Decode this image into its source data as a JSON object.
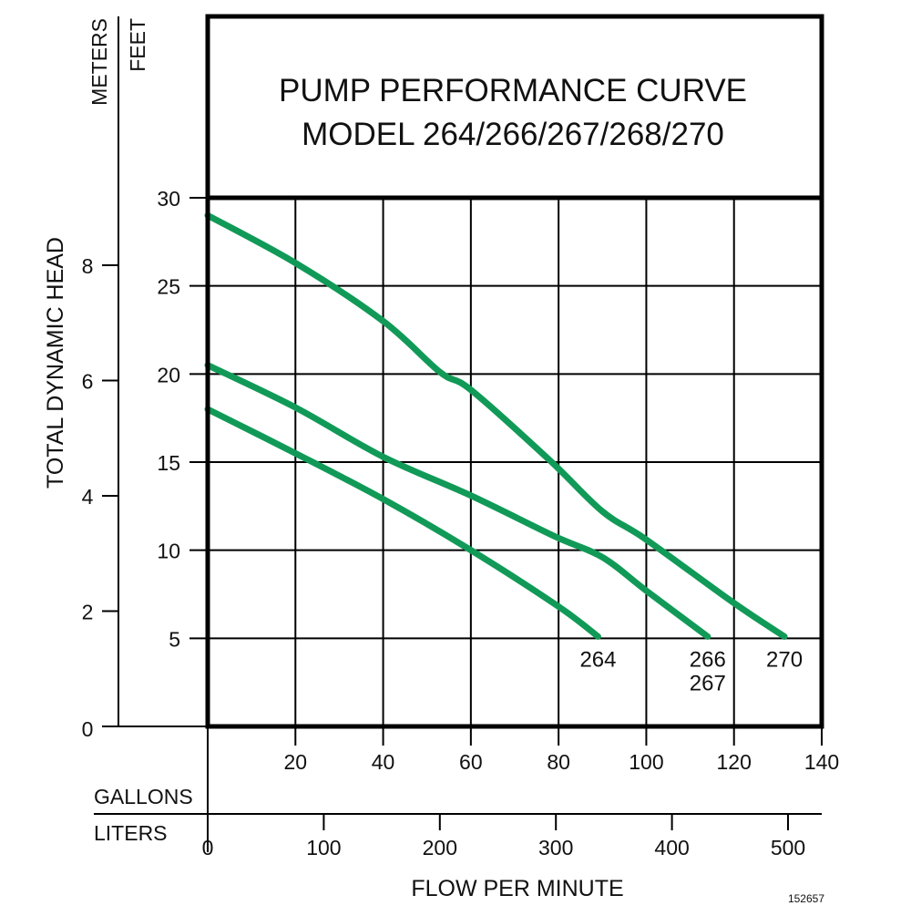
{
  "chart_data": {
    "type": "line",
    "title": "PUMP PERFORMANCE CURVE",
    "subtitle": "MODEL 264/266/267/268/270",
    "ylabel": "TOTAL DYNAMIC HEAD",
    "xlabel": "FLOW PER MINUTE",
    "y_axes": {
      "feet": {
        "label": "FEET",
        "range": [
          0,
          30
        ],
        "ticks": [
          5,
          10,
          15,
          20,
          25,
          30
        ],
        "zero_label": "0"
      },
      "meters": {
        "label": "METERS",
        "range": [
          0,
          9.144
        ],
        "ticks": [
          0,
          2,
          4,
          6,
          8
        ]
      }
    },
    "x_axes": {
      "gallons": {
        "label": "GALLONS",
        "range": [
          0,
          140
        ],
        "ticks": [
          20,
          40,
          60,
          80,
          100,
          120,
          140
        ]
      },
      "liters": {
        "label": "LITERS",
        "range": [
          0,
          530
        ],
        "ticks": [
          0,
          100,
          200,
          300,
          400,
          500
        ]
      }
    },
    "grid": true,
    "line_color": "#119a57",
    "series": [
      {
        "name": "264",
        "labels": [
          "264"
        ],
        "x": [
          0,
          20,
          40,
          60,
          80,
          89
        ],
        "y": [
          18.0,
          15.5,
          12.9,
          10.0,
          6.8,
          5.1
        ]
      },
      {
        "name": "266 267",
        "labels": [
          "266",
          "267"
        ],
        "x": [
          0,
          20,
          40,
          60,
          79,
          90,
          100,
          114
        ],
        "y": [
          20.5,
          18.1,
          15.3,
          13.1,
          10.8,
          9.6,
          7.7,
          5.1
        ]
      },
      {
        "name": "270",
        "labels": [
          "270"
        ],
        "x": [
          0,
          20,
          40,
          53,
          60,
          78,
          90,
          100,
          120,
          131.5
        ],
        "y": [
          29.0,
          26.3,
          23.0,
          20.1,
          19.1,
          15.1,
          12.2,
          10.6,
          7.0,
          5.1
        ]
      }
    ],
    "footnote": "152657"
  }
}
